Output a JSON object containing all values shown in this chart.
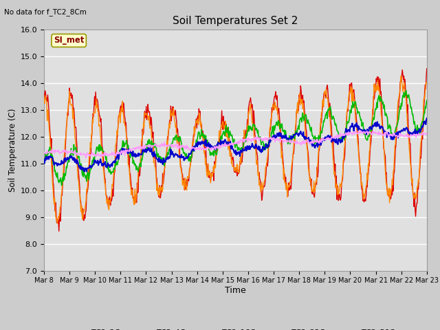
{
  "title": "Soil Temperatures Set 2",
  "subtitle": "No data for f_TC2_8Cm",
  "ylabel": "Soil Temperature (C)",
  "xlabel": "Time",
  "ylim": [
    7.0,
    16.0
  ],
  "yticks": [
    7.0,
    8.0,
    9.0,
    10.0,
    11.0,
    12.0,
    13.0,
    14.0,
    15.0,
    16.0
  ],
  "fig_bg": "#cccccc",
  "plot_bg": "#e0e0e0",
  "legend_label": "SI_met",
  "legend_box_color": "#ffffcc",
  "legend_box_border": "#999900",
  "series": {
    "TC2_2Cm": {
      "color": "#dd0000",
      "lw": 1.0
    },
    "TC2_4Cm": {
      "color": "#ff8800",
      "lw": 1.0
    },
    "TC2_16Cm": {
      "color": "#00bb00",
      "lw": 1.2
    },
    "TC2_32Cm": {
      "color": "#0000cc",
      "lw": 1.5
    },
    "TC2_50Cm": {
      "color": "#ff99ff",
      "lw": 1.2
    }
  },
  "xtick_days": [
    8,
    9,
    10,
    11,
    12,
    13,
    14,
    15,
    16,
    17,
    18,
    19,
    20,
    21,
    22,
    23
  ]
}
